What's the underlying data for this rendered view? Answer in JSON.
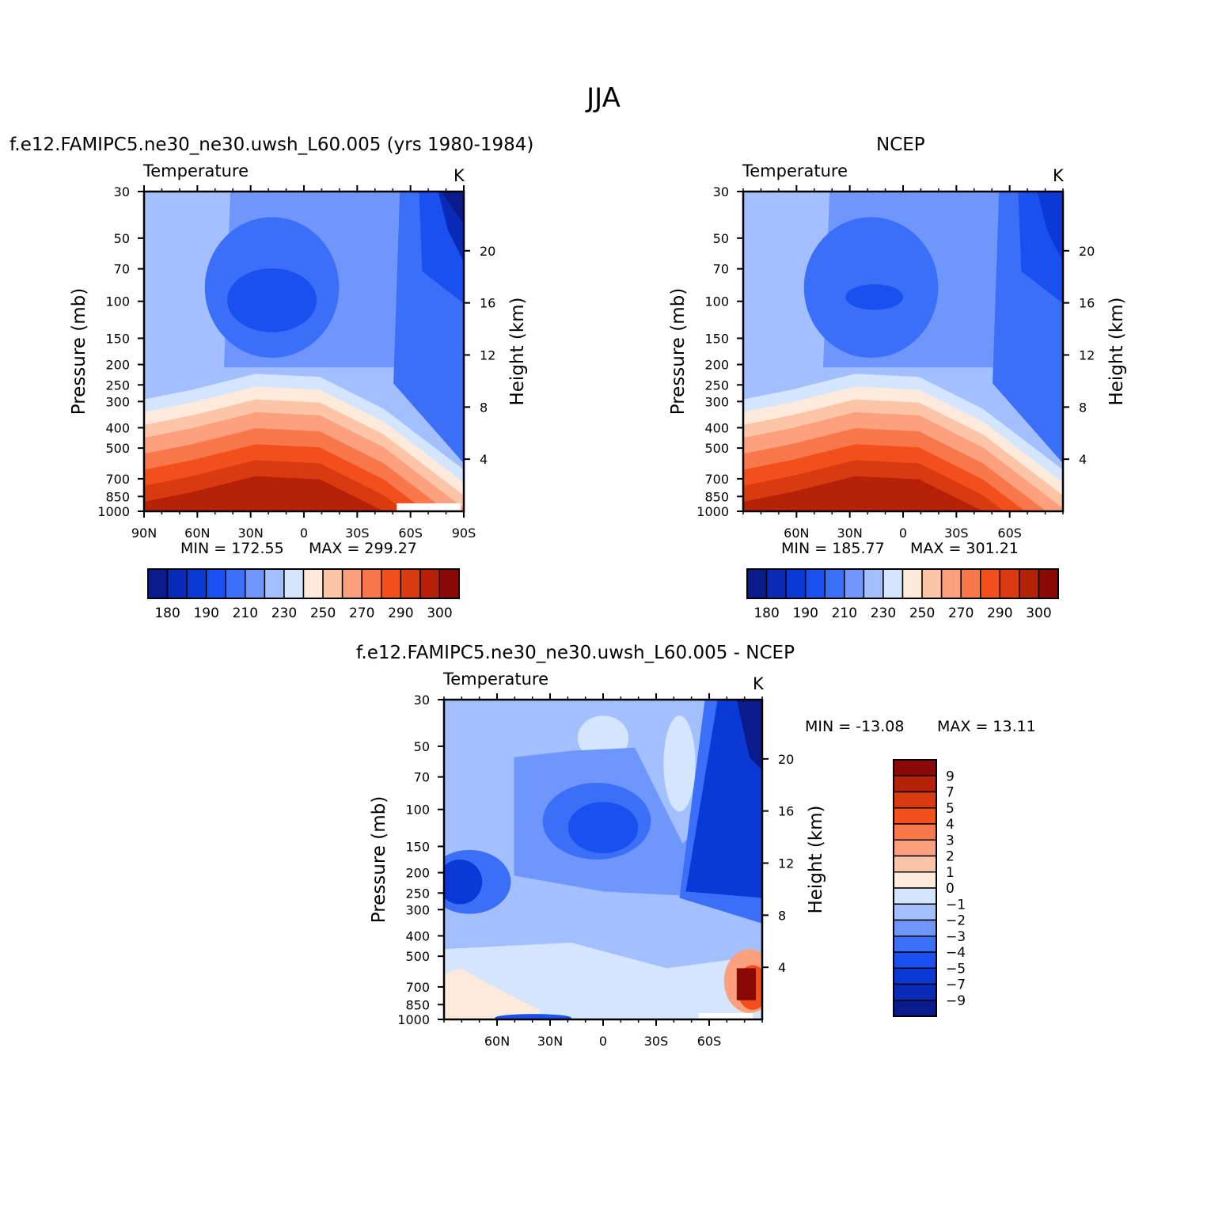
{
  "page": {
    "title": "JJA"
  },
  "colors": {
    "scale": [
      "#0a1b8c",
      "#0a2ab8",
      "#0b39d6",
      "#1a4ff0",
      "#3c6ff8",
      "#6f97fb",
      "#a4bffd",
      "#d4e6fe",
      "#feeadb",
      "#fdc5a8",
      "#fca07d",
      "#f9784b",
      "#f34f1c",
      "#d93a10",
      "#b52208",
      "#8a0806"
    ]
  },
  "chart_data": [
    {
      "type": "contour",
      "panel_title": "f.e12.FAMIPC5.ne30_ne30.uwsh_L60.005 (yrs 1980-1984)",
      "variable_label": "Temperature",
      "units": "K",
      "ylabel": "Pressure (mb)",
      "ylabel_right": "Height (km)",
      "x_ticks": [
        "90N",
        "60N",
        "30N",
        "0",
        "30S",
        "60S",
        "90S"
      ],
      "x_tick_values": [
        90,
        60,
        30,
        0,
        -30,
        -60,
        -90
      ],
      "xlim": [
        90,
        -90
      ],
      "y_ticks": [
        "30",
        "50",
        "70",
        "100",
        "150",
        "200",
        "250",
        "300",
        "400",
        "500",
        "700",
        "850",
        "1000"
      ],
      "y_tick_values": [
        30,
        50,
        70,
        100,
        150,
        200,
        250,
        300,
        400,
        500,
        700,
        850,
        1000
      ],
      "ylim": [
        30,
        1000
      ],
      "height_ticks": [
        "20",
        "16",
        "12",
        "8",
        "4"
      ],
      "height_tick_values": [
        20,
        16,
        12,
        8,
        4
      ],
      "min_label": "MIN = 172.55",
      "max_label": "MAX = 299.27",
      "min": 172.55,
      "max": 299.27,
      "colorbar_labels": [
        "180",
        "190",
        "210",
        "230",
        "250",
        "270",
        "290",
        "300"
      ],
      "colorbar_levels": [
        180,
        185,
        190,
        200,
        210,
        220,
        230,
        240,
        250,
        260,
        270,
        280,
        290,
        295,
        300
      ]
    },
    {
      "type": "contour",
      "panel_title": "NCEP",
      "variable_label": "Temperature",
      "units": "K",
      "ylabel": "Pressure (mb)",
      "ylabel_right": "Height (km)",
      "x_ticks": [
        "60N",
        "30N",
        "0",
        "30S",
        "60S"
      ],
      "x_tick_values": [
        60,
        30,
        0,
        -30,
        -60
      ],
      "xlim": [
        90,
        -90
      ],
      "y_ticks": [
        "30",
        "50",
        "70",
        "100",
        "150",
        "200",
        "250",
        "300",
        "400",
        "500",
        "700",
        "850",
        "1000"
      ],
      "y_tick_values": [
        30,
        50,
        70,
        100,
        150,
        200,
        250,
        300,
        400,
        500,
        700,
        850,
        1000
      ],
      "ylim": [
        30,
        1000
      ],
      "height_ticks": [
        "20",
        "16",
        "12",
        "8",
        "4"
      ],
      "height_tick_values": [
        20,
        16,
        12,
        8,
        4
      ],
      "min_label": "MIN = 185.77",
      "max_label": "MAX = 301.21",
      "min": 185.77,
      "max": 301.21,
      "colorbar_labels": [
        "180",
        "190",
        "210",
        "230",
        "250",
        "270",
        "290",
        "300"
      ],
      "colorbar_levels": [
        180,
        185,
        190,
        200,
        210,
        220,
        230,
        240,
        250,
        260,
        270,
        280,
        290,
        295,
        300
      ]
    },
    {
      "type": "contour",
      "panel_title": "f.e12.FAMIPC5.ne30_ne30.uwsh_L60.005 - NCEP",
      "variable_label": "Temperature",
      "units": "K",
      "ylabel": "Pressure (mb)",
      "ylabel_right": "Height (km)",
      "x_ticks": [
        "60N",
        "30N",
        "0",
        "30S",
        "60S"
      ],
      "x_tick_values": [
        60,
        30,
        0,
        -30,
        -60
      ],
      "xlim": [
        90,
        -90
      ],
      "y_ticks": [
        "30",
        "50",
        "70",
        "100",
        "150",
        "200",
        "250",
        "300",
        "400",
        "500",
        "700",
        "850",
        "1000"
      ],
      "y_tick_values": [
        30,
        50,
        70,
        100,
        150,
        200,
        250,
        300,
        400,
        500,
        700,
        850,
        1000
      ],
      "ylim": [
        30,
        1000
      ],
      "height_ticks": [
        "20",
        "16",
        "12",
        "8",
        "4"
      ],
      "height_tick_values": [
        20,
        16,
        12,
        8,
        4
      ],
      "min_label": "MIN = -13.08",
      "max_label": "MAX =  13.11",
      "min": -13.08,
      "max": 13.11,
      "colorbar_labels": [
        "9",
        "7",
        "5",
        "4",
        "3",
        "2",
        "1",
        "0",
        "−1",
        "−2",
        "−3",
        "−4",
        "−5",
        "−7",
        "−9"
      ],
      "colorbar_levels": [
        9,
        7,
        5,
        4,
        3,
        2,
        1,
        0,
        -1,
        -2,
        -3,
        -4,
        -5,
        -7,
        -9
      ]
    }
  ]
}
